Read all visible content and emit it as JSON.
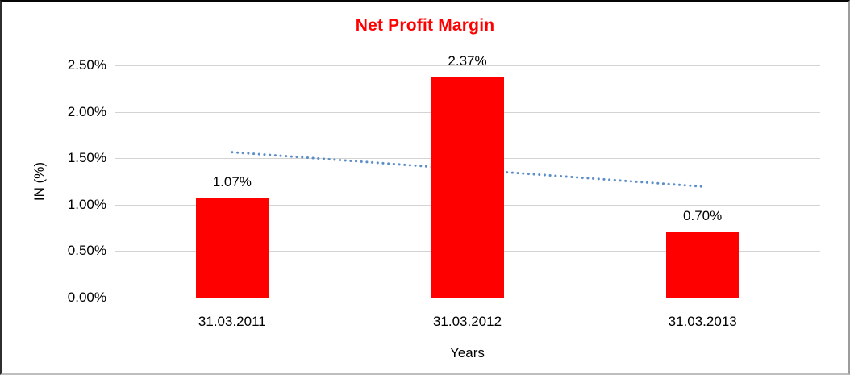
{
  "chart_data": {
    "type": "bar",
    "title": "Net Profit Margin",
    "title_color": "#FF0000",
    "categories": [
      "31.03.2011",
      "31.03.2012",
      "31.03.2013"
    ],
    "values": [
      1.07,
      2.37,
      0.7
    ],
    "data_labels": [
      "1.07%",
      "2.37%",
      "0.70%"
    ],
    "xlabel": "Years",
    "ylabel": "IN (%)",
    "ylim": [
      0,
      2.5
    ],
    "yticks": [
      {
        "value": 0.0,
        "label": "0.00%"
      },
      {
        "value": 0.5,
        "label": "0.50%"
      },
      {
        "value": 1.0,
        "label": "1.00%"
      },
      {
        "value": 1.5,
        "label": "1.50%"
      },
      {
        "value": 2.0,
        "label": "2.00%"
      },
      {
        "value": 2.5,
        "label": "2.50%"
      }
    ],
    "grid": true,
    "gridline_color": "#d3d3d3",
    "bar_color": "#FF0000",
    "legend": "none",
    "trendline": {
      "type": "linear",
      "style": "dotted",
      "color": "#5b8dc8",
      "start_value": 1.565,
      "end_value": 1.195
    }
  }
}
